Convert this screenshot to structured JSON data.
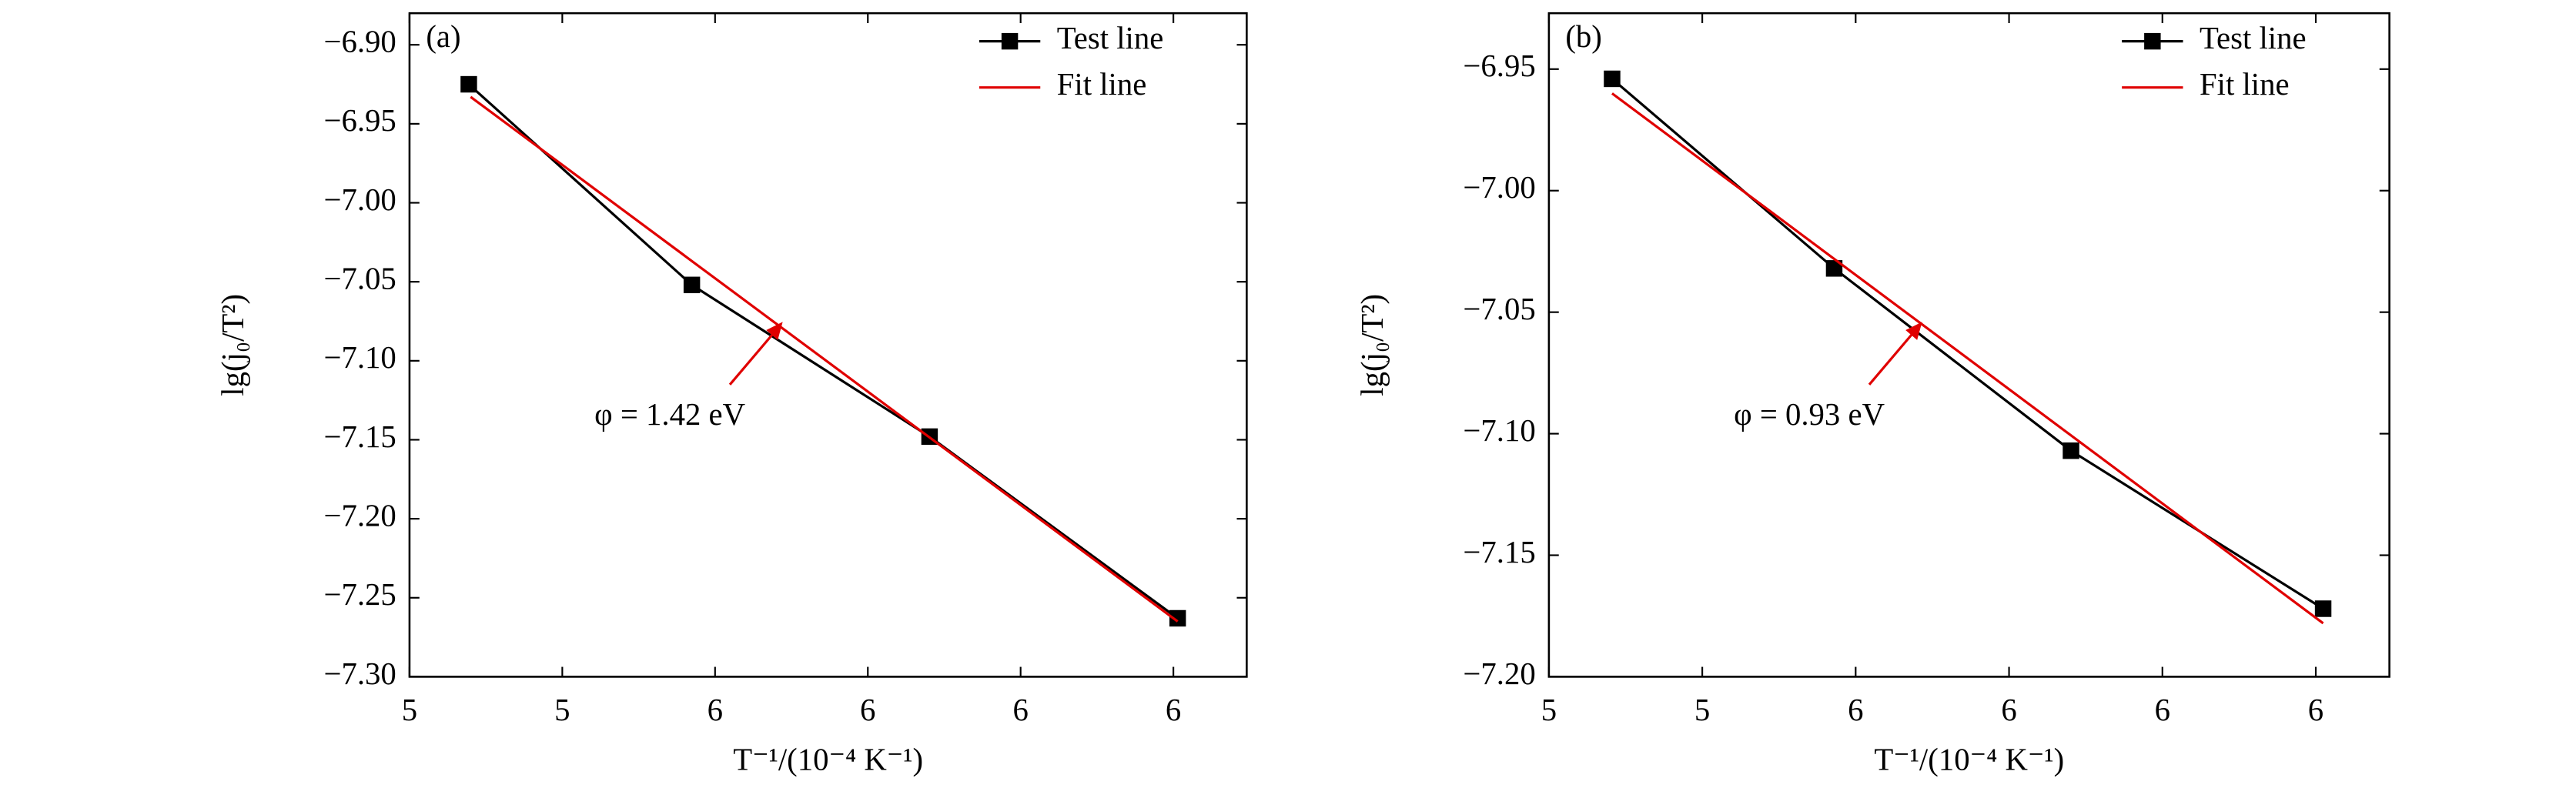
{
  "chart_data": [
    {
      "type": "line",
      "panel_label": "(a)",
      "x_label": "T⁻¹/(10⁻⁴ K⁻¹)",
      "y_label": "lg(j₀/T²)",
      "xlim": [
        5.0,
        6.37
      ],
      "xticks": [
        {
          "value": 5.0,
          "label": "5"
        },
        {
          "value": 5.25,
          "label": "5"
        },
        {
          "value": 5.5,
          "label": "6"
        },
        {
          "value": 5.75,
          "label": "6"
        },
        {
          "value": 6.0,
          "label": "6"
        },
        {
          "value": 6.25,
          "label": "6"
        }
      ],
      "ylim": [
        -7.3,
        -6.88
      ],
      "yticks": [
        {
          "value": -6.9,
          "label": "−6.90"
        },
        {
          "value": -6.95,
          "label": "−6.95"
        },
        {
          "value": -7.0,
          "label": "−7.00"
        },
        {
          "value": -7.05,
          "label": "−7.05"
        },
        {
          "value": -7.1,
          "label": "−7.10"
        },
        {
          "value": -7.15,
          "label": "−7.15"
        },
        {
          "value": -7.2,
          "label": "−7.20"
        },
        {
          "value": -7.25,
          "label": "−7.25"
        },
        {
          "value": -7.3,
          "label": "−7.30"
        }
      ],
      "series": [
        {
          "name": "Test line",
          "color": "#000000",
          "marker": "square",
          "x": [
            5.097,
            5.462,
            5.851,
            6.257
          ],
          "values": [
            -6.925,
            -7.052,
            -7.148,
            -7.263
          ]
        },
        {
          "name": "Fit line",
          "color": "#e00000",
          "x": [
            5.1,
            6.257
          ],
          "values": [
            -6.933,
            -7.265
          ]
        }
      ],
      "legend": "upper right",
      "annotation": "φ = 1.42 eV"
    },
    {
      "type": "line",
      "panel_label": "(b)",
      "x_label": "T⁻¹/(10⁻⁴ K⁻¹)",
      "y_label": "lg(j₀/T²)",
      "xlim": [
        5.0,
        6.37
      ],
      "xticks": [
        {
          "value": 5.0,
          "label": "5"
        },
        {
          "value": 5.25,
          "label": "5"
        },
        {
          "value": 5.5,
          "label": "6"
        },
        {
          "value": 5.75,
          "label": "6"
        },
        {
          "value": 6.0,
          "label": "6"
        },
        {
          "value": 6.25,
          "label": "6"
        }
      ],
      "ylim": [
        -7.2,
        -6.927
      ],
      "yticks": [
        {
          "value": -6.95,
          "label": "−6.95"
        },
        {
          "value": -7.0,
          "label": "−7.00"
        },
        {
          "value": -7.05,
          "label": "−7.05"
        },
        {
          "value": -7.1,
          "label": "−7.10"
        },
        {
          "value": -7.15,
          "label": "−7.15"
        },
        {
          "value": -7.2,
          "label": "−7.20"
        }
      ],
      "series": [
        {
          "name": "Test line",
          "color": "#000000",
          "marker": "square",
          "x": [
            5.103,
            5.465,
            5.851,
            6.262
          ],
          "values": [
            -6.954,
            -7.032,
            -7.107,
            -7.172
          ]
        },
        {
          "name": "Fit line",
          "color": "#e00000",
          "x": [
            5.103,
            6.262
          ],
          "values": [
            -6.96,
            -7.178
          ]
        }
      ],
      "legend": "upper right",
      "annotation": "φ = 0.93 eV"
    }
  ]
}
